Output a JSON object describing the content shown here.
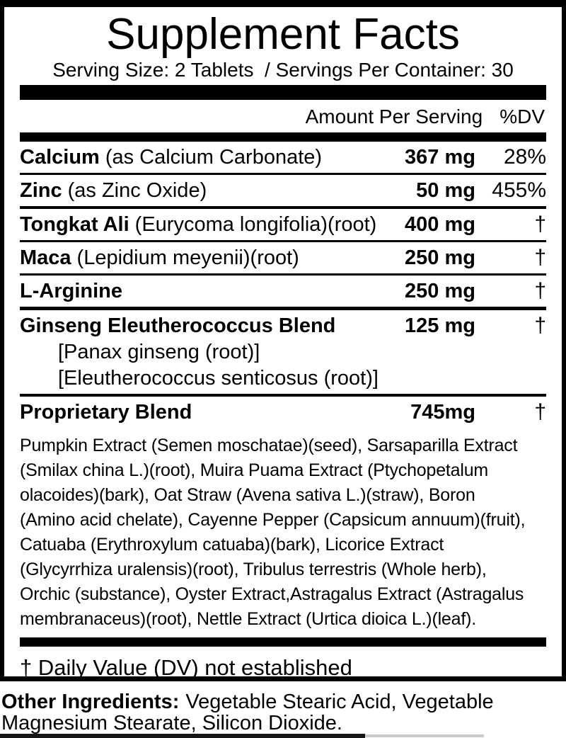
{
  "colors": {
    "ink": "#000000",
    "paper": "#ffffff"
  },
  "header": {
    "title": "Supplement Facts",
    "serving_line": "Serving Size: 2 Tablets  / Servings Per Container: 30"
  },
  "columns": {
    "amount_header": "Amount Per Serving",
    "dv_header": "%DV"
  },
  "rows": [
    {
      "name": "Calcium",
      "detail": "(as Calcium Carbonate)",
      "amount": "367 mg",
      "dv": "28%"
    },
    {
      "name": "Zinc",
      "detail": "(as Zinc Oxide)",
      "amount": "50 mg",
      "dv": "455%"
    },
    {
      "name": "Tongkat Ali",
      "detail": "(Eurycoma longifolia)(root)",
      "amount": "400 mg",
      "dv": "†"
    },
    {
      "name": "Maca",
      "detail": "(Lepidium meyenii)(root)",
      "amount": "250 mg",
      "dv": "†"
    },
    {
      "name": "L-Arginine",
      "detail": "",
      "amount": "250 mg",
      "dv": "†"
    },
    {
      "name": "Ginseng Eleutherococcus Blend",
      "detail": "",
      "amount": "125 mg",
      "dv": "†",
      "sublines": [
        "[Panax ginseng (root)]",
        "[Eleutherococcus senticosus (root)]"
      ]
    },
    {
      "name": "Proprietary Blend",
      "detail": "",
      "amount": "745mg",
      "dv": "†"
    }
  ],
  "proprietary": {
    "description_lines": [
      "Pumpkin Extract (Semen moschatae)(seed), Sarsaparilla Extract",
      "(Smilax china L.)(root), Muira Puama Extract (Ptychopetalum",
      "olacoides)(bark), Oat Straw (Avena sativa L.)(straw), Boron",
      "(Amino acid chelate), Cayenne Pepper (Capsicum annuum)(fruit),",
      "Catuaba (Erythroxylum catuaba)(bark), Licorice Extract",
      "(Glycyrrhiza uralensis)(root), Tribulus terrestris (Whole herb),",
      "Orchic (substance), Oyster Extract,Astragalus Extract (Astragalus",
      "membranaceus)(root), Nettle Extract (Urtica dioica L.)(leaf)."
    ]
  },
  "footnote": "† Daily Value (DV) not established",
  "other_ingredients": {
    "label": "Other Ingredients:",
    "text": "Vegetable Stearic Acid, Vegetable Magnesium Stearate, Silicon Dioxide."
  }
}
